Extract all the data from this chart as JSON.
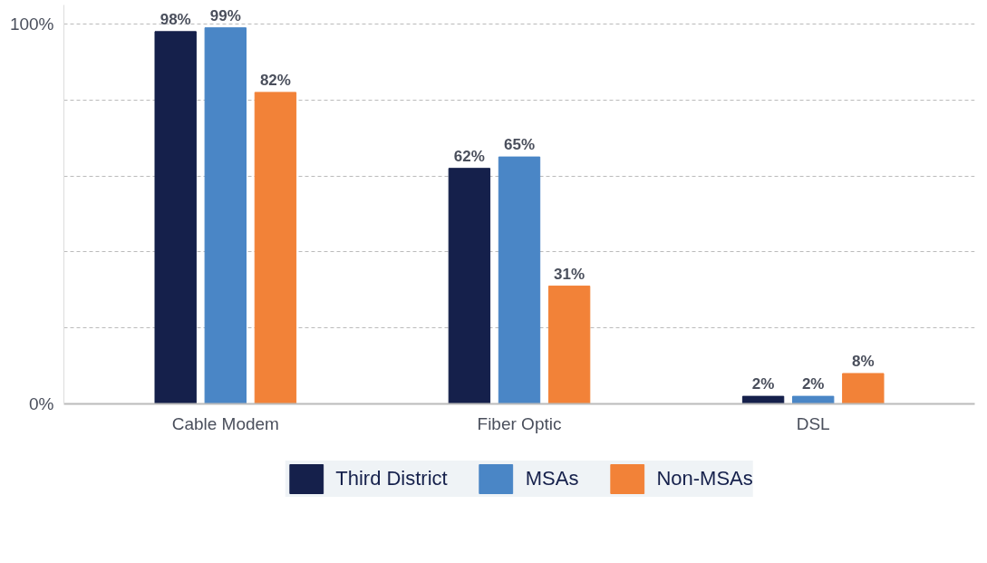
{
  "chart_data": {
    "type": "bar",
    "categories": [
      "Cable Modem",
      "Fiber Optic",
      "DSL"
    ],
    "series": [
      {
        "name": "Third District",
        "color": "#15204b",
        "values": [
          98,
          62,
          2
        ],
        "value_labels": [
          "98%",
          "62%",
          "2%"
        ]
      },
      {
        "name": "MSAs",
        "color": "#4a86c6",
        "values": [
          99,
          65,
          2
        ],
        "value_labels": [
          "99%",
          "65%",
          "2%"
        ]
      },
      {
        "name": "Non-MSAs",
        "color": "#f28238",
        "values": [
          82,
          31,
          8
        ],
        "value_labels": [
          "82%",
          "31%",
          "8%"
        ]
      }
    ],
    "ylim": [
      0,
      105
    ],
    "yticks": [
      {
        "value": 0,
        "label": "0%"
      },
      {
        "value": 20,
        "label": null
      },
      {
        "value": 40,
        "label": null
      },
      {
        "value": 60,
        "label": null
      },
      {
        "value": 80,
        "label": null
      },
      {
        "value": 100,
        "label": "100%"
      }
    ],
    "grid": "y",
    "legend": "bottom"
  }
}
